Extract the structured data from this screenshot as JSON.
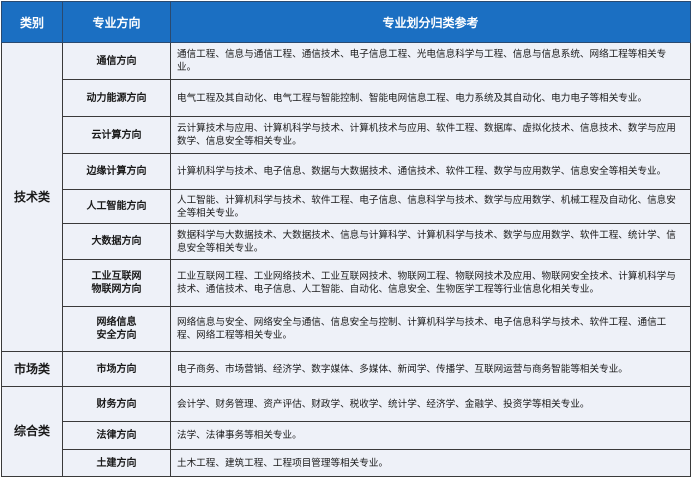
{
  "headers": [
    "类别",
    "专业方向",
    "专业划分归类参考"
  ],
  "groups": [
    {
      "category": "技术类",
      "rows": [
        {
          "direction": "通信方向",
          "majors": "通信工程、信息与通信工程、通信技术、电子信息工程、光电信息科学与工程、信息与信息系统、网络工程等相关专业。"
        },
        {
          "direction": "动力能源方向",
          "majors": "电气工程及其自动化、电气工程与智能控制、智能电网信息工程、电力系统及其自动化、电力电子等相关专业。"
        },
        {
          "direction": "云计算方向",
          "majors": "云计算技术与应用、计算机科学与技术、计算机技术与应用、软件工程、数据库、虚拟化技术、信息技术、数学与应用数学、信息安全等相关专业。"
        },
        {
          "direction": "边缘计算方向",
          "majors": "计算机科学与技术、电子信息、数据与大数据技术、通信技术、软件工程、数学与应用数学、信息安全等相关专业。"
        },
        {
          "direction": "人工智能方向",
          "majors": "人工智能、计算机科学与技术、软件工程、电子信息、信息科学与技术、数学与应用数学、机械工程及自动化、信息安全等相关专业。"
        },
        {
          "direction": "大数据方向",
          "majors": "数据科学与大数据技术、大数据技术、信息与计算科学、计算机科学与技术、数学与应用数学、软件工程、统计学、信息安全等相关专业。"
        },
        {
          "direction": "工业互联网\n物联网方向",
          "majors": "工业互联网工程、工业网络技术、工业互联网技术、物联网工程、物联网技术及应用、物联网安全技术、计算机科学与技术、通信技术、电子信息、人工智能、自动化、信息安全、生物医学工程等行业信息化相关专业。"
        },
        {
          "direction": "网络信息\n安全方向",
          "majors": "网络信息与安全、网络安全与通信、信息安全与控制、计算机科学与技术、电子信息科学与技术、软件工程、通信工程、网络工程等相关专业。"
        }
      ]
    },
    {
      "category": "市场类",
      "rows": [
        {
          "direction": "市场方向",
          "majors": "电子商务、市场营销、经济学、数字媒体、多媒体、新闻学、传播学、互联网运营与商务智能等相关专业。"
        }
      ]
    },
    {
      "category": "综合类",
      "rows": [
        {
          "direction": "财务方向",
          "majors": "会计学、财务管理、资产评估、财政学、税收学、统计学、经济学、金融学、投资学等相关专业。"
        },
        {
          "direction": "法律方向",
          "majors": "法学、法律事务等相关专业。"
        },
        {
          "direction": "土建方向",
          "majors": "土木工程、建筑工程、工程项目管理等相关专业。"
        }
      ]
    }
  ]
}
